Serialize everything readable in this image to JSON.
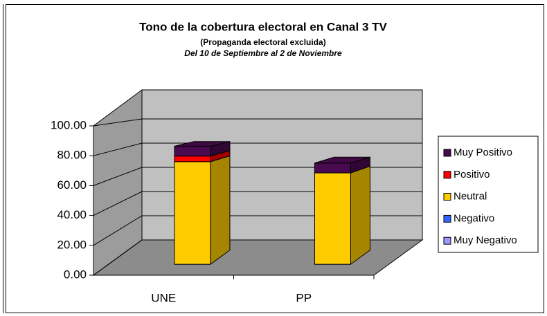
{
  "chart_data": {
    "type": "bar3d_stacked",
    "title": "Tono de la cobertura electoral en Canal 3 TV",
    "subtitle": "(Propaganda electoral excluida)",
    "subtitle2": "Del 10 de Septiembre al 2 de Noviembre",
    "categories": [
      "UNE",
      "PP"
    ],
    "series": [
      {
        "name": "Muy Negativo",
        "color": "#9999ff",
        "values": [
          0,
          0
        ]
      },
      {
        "name": "Negativo",
        "color": "#3366ff",
        "values": [
          0,
          0
        ]
      },
      {
        "name": "Neutral",
        "color": "#ffcc00",
        "values": [
          73,
          65
        ]
      },
      {
        "name": "Positivo",
        "color": "#ff0000",
        "values": [
          4,
          0
        ]
      },
      {
        "name": "Muy Positivo",
        "color": "#4a0a50",
        "values": [
          7,
          7
        ]
      }
    ],
    "ylim": [
      0,
      100
    ],
    "yticks": [
      {
        "value": 0,
        "label": "0.00"
      },
      {
        "value": 20,
        "label": "20.00"
      },
      {
        "value": 40,
        "label": "40.00"
      },
      {
        "value": 60,
        "label": "60.00"
      },
      {
        "value": 80,
        "label": "80.00"
      },
      {
        "value": 100,
        "label": "100.00"
      }
    ],
    "grid": true
  }
}
